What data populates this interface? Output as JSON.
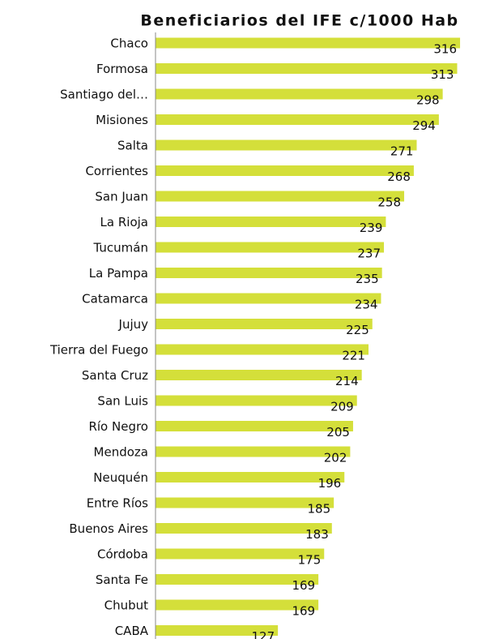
{
  "chart_data": {
    "type": "bar",
    "orientation": "horizontal",
    "title": "Beneficiarios del IFE c/1000 Hab",
    "categories": [
      "Chaco",
      "Formosa",
      "Santiago del…",
      "Misiones",
      "Salta",
      "Corrientes",
      "San Juan",
      "La Rioja",
      "Tucumán",
      "La Pampa",
      "Catamarca",
      "Jujuy",
      "Tierra del Fuego",
      "Santa Cruz",
      "San Luis",
      "Río Negro",
      "Mendoza",
      "Neuquén",
      "Entre Ríos",
      "Buenos Aires",
      "Córdoba",
      "Santa Fe",
      "Chubut",
      "CABA"
    ],
    "values": [
      316,
      313,
      298,
      294,
      271,
      268,
      258,
      239,
      237,
      235,
      234,
      225,
      221,
      214,
      209,
      205,
      202,
      196,
      185,
      183,
      175,
      169,
      169,
      127
    ],
    "color": "#d4df3a"
  }
}
